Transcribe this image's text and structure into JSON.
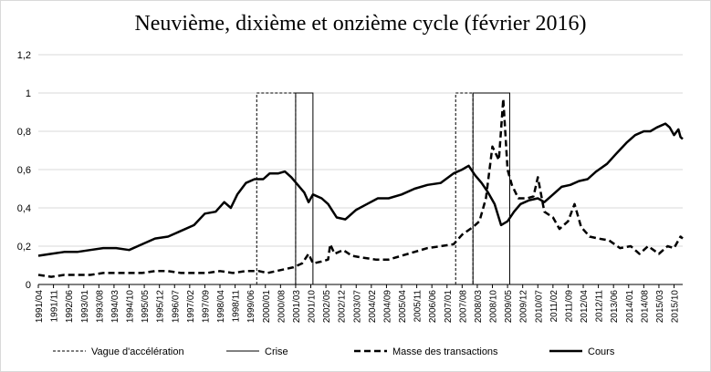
{
  "chart_data": {
    "type": "line",
    "title": "Neuvième, dixième et onzième cycle (février 2016)",
    "ylim": [
      0,
      1.2
    ],
    "y_ticks": [
      "0",
      "0,2",
      "0,4",
      "0,6",
      "0,8",
      "1",
      "1,2"
    ],
    "y_tick_values": [
      0,
      0.2,
      0.4,
      0.6,
      0.8,
      1.0,
      1.2
    ],
    "x_range": [
      "1991/04",
      "2016/02"
    ],
    "x_ticks": [
      "1991/04",
      "1991/11",
      "1992/06",
      "1993/01",
      "1993/08",
      "1994/03",
      "1994/10",
      "1995/05",
      "1995/12",
      "1996/07",
      "1997/02",
      "1997/09",
      "1998/04",
      "1998/11",
      "1999/06",
      "2000/01",
      "2000/08",
      "2001/03",
      "2001/10",
      "2002/05",
      "2002/12",
      "2003/07",
      "2004/02",
      "2004/09",
      "2005/04",
      "2005/11",
      "2006/06",
      "2007/01",
      "2007/08",
      "2008/03",
      "2008/10",
      "2009/05",
      "2009/12",
      "2010/07",
      "2011/02",
      "2011/09",
      "2012/04",
      "2012/11",
      "2013/06",
      "2014/01",
      "2014/08",
      "2015/03",
      "2015/10"
    ],
    "grid": "horizontal",
    "legend_position": "bottom",
    "series": [
      {
        "name": "Vague d'accélération",
        "style": "thin-dashed",
        "kind": "step",
        "intervals": [
          [
            "1999/09",
            "2001/03"
          ],
          [
            "2007/05",
            "2008/01"
          ]
        ],
        "values_in": 1,
        "values_out": 0
      },
      {
        "name": "Crise",
        "style": "thin-solid",
        "kind": "step",
        "intervals": [
          [
            "2001/03",
            "2001/11"
          ],
          [
            "2008/01",
            "2009/06"
          ]
        ],
        "values_in": 1,
        "values_out": 0
      },
      {
        "name": "Masse des transactions",
        "style": "thick-dashed",
        "points": [
          [
            "1991/04",
            0.05
          ],
          [
            "1991/10",
            0.04
          ],
          [
            "1992/04",
            0.05
          ],
          [
            "1992/10",
            0.05
          ],
          [
            "1993/04",
            0.05
          ],
          [
            "1993/10",
            0.06
          ],
          [
            "1994/04",
            0.06
          ],
          [
            "1994/10",
            0.06
          ],
          [
            "1995/04",
            0.06
          ],
          [
            "1995/10",
            0.07
          ],
          [
            "1996/04",
            0.07
          ],
          [
            "1996/10",
            0.06
          ],
          [
            "1997/04",
            0.06
          ],
          [
            "1997/10",
            0.06
          ],
          [
            "1998/04",
            0.07
          ],
          [
            "1998/10",
            0.06
          ],
          [
            "1999/04",
            0.07
          ],
          [
            "1999/10",
            0.07
          ],
          [
            "2000/02",
            0.06
          ],
          [
            "2000/06",
            0.07
          ],
          [
            "2000/10",
            0.08
          ],
          [
            "2001/02",
            0.09
          ],
          [
            "2001/06",
            0.11
          ],
          [
            "2001/09",
            0.16
          ],
          [
            "2001/11",
            0.11
          ],
          [
            "2002/03",
            0.12
          ],
          [
            "2002/06",
            0.13
          ],
          [
            "2002/07",
            0.21
          ],
          [
            "2002/09",
            0.16
          ],
          [
            "2003/01",
            0.18
          ],
          [
            "2003/05",
            0.15
          ],
          [
            "2003/10",
            0.14
          ],
          [
            "2004/04",
            0.13
          ],
          [
            "2004/10",
            0.13
          ],
          [
            "2005/04",
            0.15
          ],
          [
            "2005/10",
            0.17
          ],
          [
            "2006/04",
            0.19
          ],
          [
            "2006/10",
            0.2
          ],
          [
            "2007/04",
            0.21
          ],
          [
            "2007/08",
            0.26
          ],
          [
            "2008/01",
            0.3
          ],
          [
            "2008/04",
            0.33
          ],
          [
            "2008/07",
            0.45
          ],
          [
            "2008/10",
            0.72
          ],
          [
            "2009/01",
            0.65
          ],
          [
            "2009/03",
            0.97
          ],
          [
            "2009/05",
            0.6
          ],
          [
            "2009/07",
            0.52
          ],
          [
            "2009/10",
            0.45
          ],
          [
            "2010/02",
            0.45
          ],
          [
            "2010/05",
            0.46
          ],
          [
            "2010/07",
            0.56
          ],
          [
            "2010/10",
            0.38
          ],
          [
            "2011/02",
            0.35
          ],
          [
            "2011/05",
            0.29
          ],
          [
            "2011/09",
            0.33
          ],
          [
            "2011/12",
            0.42
          ],
          [
            "2012/03",
            0.3
          ],
          [
            "2012/07",
            0.25
          ],
          [
            "2012/11",
            0.24
          ],
          [
            "2013/04",
            0.23
          ],
          [
            "2013/09",
            0.19
          ],
          [
            "2014/02",
            0.2
          ],
          [
            "2014/06",
            0.16
          ],
          [
            "2014/10",
            0.2
          ],
          [
            "2015/03",
            0.16
          ],
          [
            "2015/07",
            0.2
          ],
          [
            "2015/10",
            0.19
          ],
          [
            "2016/01",
            0.25
          ],
          [
            "2016/02",
            0.24
          ]
        ]
      },
      {
        "name": "Cours",
        "style": "thick-solid",
        "points": [
          [
            "1991/04",
            0.15
          ],
          [
            "1991/10",
            0.16
          ],
          [
            "1992/04",
            0.17
          ],
          [
            "1992/10",
            0.17
          ],
          [
            "1993/04",
            0.18
          ],
          [
            "1993/10",
            0.19
          ],
          [
            "1994/04",
            0.19
          ],
          [
            "1994/10",
            0.18
          ],
          [
            "1995/04",
            0.21
          ],
          [
            "1995/10",
            0.24
          ],
          [
            "1996/04",
            0.25
          ],
          [
            "1996/10",
            0.28
          ],
          [
            "1997/04",
            0.31
          ],
          [
            "1997/09",
            0.37
          ],
          [
            "1998/02",
            0.38
          ],
          [
            "1998/06",
            0.43
          ],
          [
            "1998/09",
            0.4
          ],
          [
            "1998/12",
            0.47
          ],
          [
            "1999/04",
            0.53
          ],
          [
            "1999/08",
            0.55
          ],
          [
            "1999/12",
            0.55
          ],
          [
            "2000/03",
            0.58
          ],
          [
            "2000/07",
            0.58
          ],
          [
            "2000/10",
            0.59
          ],
          [
            "2001/01",
            0.56
          ],
          [
            "2001/04",
            0.52
          ],
          [
            "2001/07",
            0.48
          ],
          [
            "2001/09",
            0.43
          ],
          [
            "2001/11",
            0.47
          ],
          [
            "2002/03",
            0.45
          ],
          [
            "2002/06",
            0.42
          ],
          [
            "2002/10",
            0.35
          ],
          [
            "2003/02",
            0.34
          ],
          [
            "2003/07",
            0.39
          ],
          [
            "2003/12",
            0.42
          ],
          [
            "2004/05",
            0.45
          ],
          [
            "2004/10",
            0.45
          ],
          [
            "2005/04",
            0.47
          ],
          [
            "2005/10",
            0.5
          ],
          [
            "2006/04",
            0.52
          ],
          [
            "2006/10",
            0.53
          ],
          [
            "2007/04",
            0.58
          ],
          [
            "2007/08",
            0.6
          ],
          [
            "2007/11",
            0.62
          ],
          [
            "2008/02",
            0.57
          ],
          [
            "2008/05",
            0.53
          ],
          [
            "2008/08",
            0.48
          ],
          [
            "2008/11",
            0.42
          ],
          [
            "2009/02",
            0.31
          ],
          [
            "2009/05",
            0.33
          ],
          [
            "2009/08",
            0.38
          ],
          [
            "2009/11",
            0.42
          ],
          [
            "2010/03",
            0.44
          ],
          [
            "2010/07",
            0.45
          ],
          [
            "2010/10",
            0.43
          ],
          [
            "2011/02",
            0.47
          ],
          [
            "2011/06",
            0.51
          ],
          [
            "2011/10",
            0.52
          ],
          [
            "2012/02",
            0.54
          ],
          [
            "2012/06",
            0.55
          ],
          [
            "2012/10",
            0.59
          ],
          [
            "2013/03",
            0.63
          ],
          [
            "2013/07",
            0.68
          ],
          [
            "2013/12",
            0.74
          ],
          [
            "2014/04",
            0.78
          ],
          [
            "2014/08",
            0.8
          ],
          [
            "2014/11",
            0.8
          ],
          [
            "2015/02",
            0.82
          ],
          [
            "2015/06",
            0.84
          ],
          [
            "2015/08",
            0.82
          ],
          [
            "2015/10",
            0.78
          ],
          [
            "2015/12",
            0.81
          ],
          [
            "2016/01",
            0.77
          ],
          [
            "2016/02",
            0.76
          ]
        ]
      }
    ]
  }
}
